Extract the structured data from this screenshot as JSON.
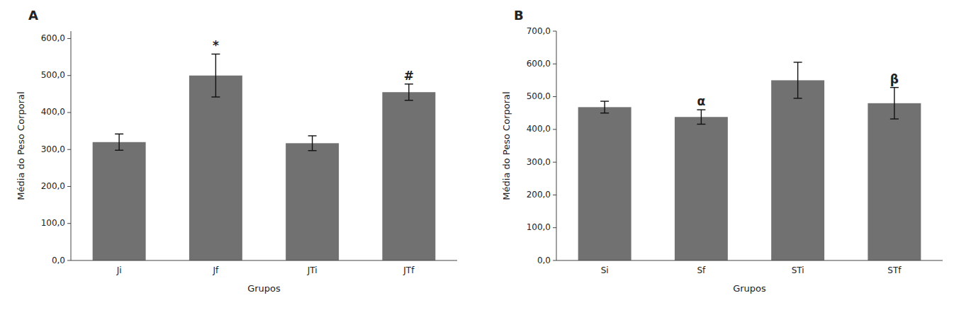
{
  "chart_data": [
    {
      "type": "bar",
      "title": "A",
      "categories": [
        "Ji",
        "Jf",
        "JTi",
        "JTf"
      ],
      "values": [
        320,
        500,
        317,
        455
      ],
      "errors": [
        22,
        58,
        20,
        22
      ],
      "color": "#717171",
      "ylabel": "Média do Peso Corporal",
      "xlabel": "Grupos",
      "ylim": [
        0,
        620
      ],
      "yticks": [
        {
          "value": 0,
          "label": "0,0"
        },
        {
          "value": 100,
          "label": "100,0"
        },
        {
          "value": 200,
          "label": "200,0"
        },
        {
          "value": 300,
          "label": "300,0"
        },
        {
          "value": 400,
          "label": "400,0"
        },
        {
          "value": 500,
          "label": "500,0"
        },
        {
          "value": 600,
          "label": "600,0"
        }
      ],
      "annotations": [
        {
          "text": "*",
          "x": "Jf"
        },
        {
          "text": "#",
          "x": "JTf"
        }
      ],
      "grid": false
    },
    {
      "type": "bar",
      "title": "B",
      "categories": [
        "Si",
        "Sf",
        "STi",
        "STf"
      ],
      "values": [
        468,
        438,
        550,
        480
      ],
      "errors": [
        18,
        22,
        55,
        48
      ],
      "color": "#717171",
      "ylabel": "Média do Peso Corporal",
      "xlabel": "Grupos",
      "ylim": [
        0,
        700
      ],
      "yticks": [
        {
          "value": 0,
          "label": "0,0"
        },
        {
          "value": 100,
          "label": "100,0"
        },
        {
          "value": 200,
          "label": "200,0"
        },
        {
          "value": 300,
          "label": "300,0"
        },
        {
          "value": 400,
          "label": "400,0"
        },
        {
          "value": 500,
          "label": "500,0"
        },
        {
          "value": 600,
          "label": "600,0"
        },
        {
          "value": 700,
          "label": "700,0"
        }
      ],
      "annotations": [
        {
          "text": "α",
          "x": "Sf"
        },
        {
          "text": "β",
          "x": "STf"
        }
      ],
      "grid": false
    }
  ]
}
